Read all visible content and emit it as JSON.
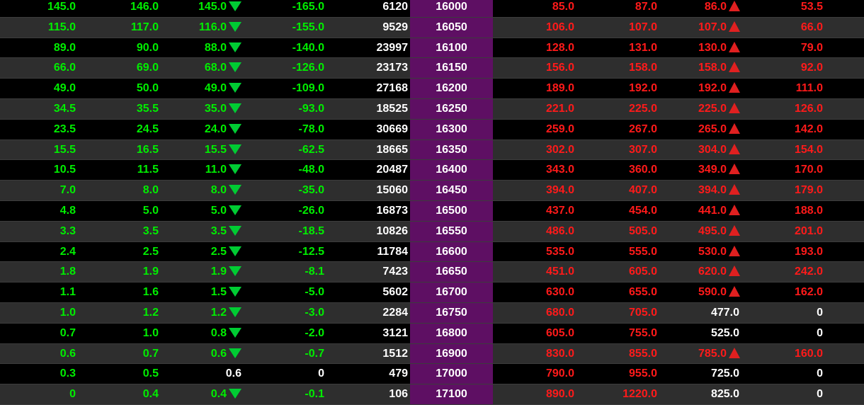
{
  "colors": {
    "up": "#00ee00",
    "down": "#ff1a1a",
    "neutral": "#ffffff",
    "strike_bg": "#5e0f63"
  },
  "rows": [
    {
      "c0": "145.0",
      "c1": "146.0",
      "c2": "145.0",
      "c2a": "down",
      "c2c": "green",
      "c3": "-165.0",
      "c3c": "green",
      "c4": "6120",
      "strike": "16000",
      "c5": "85.0",
      "c6": "87.0",
      "c7": "86.0",
      "c7a": "up",
      "c7c": "red",
      "c8": "53.5",
      "c8c": "red"
    },
    {
      "c0": "115.0",
      "c1": "117.0",
      "c2": "116.0",
      "c2a": "down",
      "c2c": "green",
      "c3": "-155.0",
      "c3c": "green",
      "c4": "9529",
      "strike": "16050",
      "c5": "106.0",
      "c6": "107.0",
      "c7": "107.0",
      "c7a": "up",
      "c7c": "red",
      "c8": "66.0",
      "c8c": "red"
    },
    {
      "c0": "89.0",
      "c1": "90.0",
      "c2": "88.0",
      "c2a": "down",
      "c2c": "green",
      "c3": "-140.0",
      "c3c": "green",
      "c4": "23997",
      "strike": "16100",
      "c5": "128.0",
      "c6": "131.0",
      "c7": "130.0",
      "c7a": "up",
      "c7c": "red",
      "c8": "79.0",
      "c8c": "red"
    },
    {
      "c0": "66.0",
      "c1": "69.0",
      "c2": "68.0",
      "c2a": "down",
      "c2c": "green",
      "c3": "-126.0",
      "c3c": "green",
      "c4": "23173",
      "strike": "16150",
      "c5": "156.0",
      "c6": "158.0",
      "c7": "158.0",
      "c7a": "up",
      "c7c": "red",
      "c8": "92.0",
      "c8c": "red"
    },
    {
      "c0": "49.0",
      "c1": "50.0",
      "c2": "49.0",
      "c2a": "down",
      "c2c": "green",
      "c3": "-109.0",
      "c3c": "green",
      "c4": "27168",
      "strike": "16200",
      "c5": "189.0",
      "c6": "192.0",
      "c7": "192.0",
      "c7a": "up",
      "c7c": "red",
      "c8": "111.0",
      "c8c": "red"
    },
    {
      "c0": "34.5",
      "c1": "35.5",
      "c2": "35.0",
      "c2a": "down",
      "c2c": "green",
      "c3": "-93.0",
      "c3c": "green",
      "c4": "18525",
      "strike": "16250",
      "c5": "221.0",
      "c6": "225.0",
      "c7": "225.0",
      "c7a": "up",
      "c7c": "red",
      "c8": "126.0",
      "c8c": "red"
    },
    {
      "c0": "23.5",
      "c1": "24.5",
      "c2": "24.0",
      "c2a": "down",
      "c2c": "green",
      "c3": "-78.0",
      "c3c": "green",
      "c4": "30669",
      "strike": "16300",
      "c5": "259.0",
      "c6": "267.0",
      "c7": "265.0",
      "c7a": "up",
      "c7c": "red",
      "c8": "142.0",
      "c8c": "red"
    },
    {
      "c0": "15.5",
      "c1": "16.5",
      "c2": "15.5",
      "c2a": "down",
      "c2c": "green",
      "c3": "-62.5",
      "c3c": "green",
      "c4": "18665",
      "strike": "16350",
      "c5": "302.0",
      "c6": "307.0",
      "c7": "304.0",
      "c7a": "up",
      "c7c": "red",
      "c8": "154.0",
      "c8c": "red"
    },
    {
      "c0": "10.5",
      "c1": "11.5",
      "c2": "11.0",
      "c2a": "down",
      "c2c": "green",
      "c3": "-48.0",
      "c3c": "green",
      "c4": "20487",
      "strike": "16400",
      "c5": "343.0",
      "c6": "360.0",
      "c7": "349.0",
      "c7a": "up",
      "c7c": "red",
      "c8": "170.0",
      "c8c": "red"
    },
    {
      "c0": "7.0",
      "c1": "8.0",
      "c2": "8.0",
      "c2a": "down",
      "c2c": "green",
      "c3": "-35.0",
      "c3c": "green",
      "c4": "15060",
      "strike": "16450",
      "c5": "394.0",
      "c6": "407.0",
      "c7": "394.0",
      "c7a": "up",
      "c7c": "red",
      "c8": "179.0",
      "c8c": "red"
    },
    {
      "c0": "4.8",
      "c1": "5.0",
      "c2": "5.0",
      "c2a": "down",
      "c2c": "green",
      "c3": "-26.0",
      "c3c": "green",
      "c4": "16873",
      "strike": "16500",
      "c5": "437.0",
      "c6": "454.0",
      "c7": "441.0",
      "c7a": "up",
      "c7c": "red",
      "c8": "188.0",
      "c8c": "red"
    },
    {
      "c0": "3.3",
      "c1": "3.5",
      "c2": "3.5",
      "c2a": "down",
      "c2c": "green",
      "c3": "-18.5",
      "c3c": "green",
      "c4": "10826",
      "strike": "16550",
      "c5": "486.0",
      "c6": "505.0",
      "c7": "495.0",
      "c7a": "up",
      "c7c": "red",
      "c8": "201.0",
      "c8c": "red"
    },
    {
      "c0": "2.4",
      "c1": "2.5",
      "c2": "2.5",
      "c2a": "down",
      "c2c": "green",
      "c3": "-12.5",
      "c3c": "green",
      "c4": "11784",
      "strike": "16600",
      "c5": "535.0",
      "c6": "555.0",
      "c7": "530.0",
      "c7a": "up",
      "c7c": "red",
      "c8": "193.0",
      "c8c": "red"
    },
    {
      "c0": "1.8",
      "c1": "1.9",
      "c2": "1.9",
      "c2a": "down",
      "c2c": "green",
      "c3": "-8.1",
      "c3c": "green",
      "c4": "7423",
      "strike": "16650",
      "c5": "451.0",
      "c6": "605.0",
      "c7": "620.0",
      "c7a": "up",
      "c7c": "red",
      "c8": "242.0",
      "c8c": "red"
    },
    {
      "c0": "1.1",
      "c1": "1.6",
      "c2": "1.5",
      "c2a": "down",
      "c2c": "green",
      "c3": "-5.0",
      "c3c": "green",
      "c4": "5602",
      "strike": "16700",
      "c5": "630.0",
      "c6": "655.0",
      "c7": "590.0",
      "c7a": "up",
      "c7c": "red",
      "c8": "162.0",
      "c8c": "red"
    },
    {
      "c0": "1.0",
      "c1": "1.2",
      "c2": "1.2",
      "c2a": "down",
      "c2c": "green",
      "c3": "-3.0",
      "c3c": "green",
      "c4": "2284",
      "strike": "16750",
      "c5": "680.0",
      "c6": "705.0",
      "c7": "477.0",
      "c7a": "none",
      "c7c": "white",
      "c8": "0",
      "c8c": "white"
    },
    {
      "c0": "0.7",
      "c1": "1.0",
      "c2": "0.8",
      "c2a": "down",
      "c2c": "green",
      "c3": "-2.0",
      "c3c": "green",
      "c4": "3121",
      "strike": "16800",
      "c5": "605.0",
      "c6": "755.0",
      "c7": "525.0",
      "c7a": "none",
      "c7c": "white",
      "c8": "0",
      "c8c": "white"
    },
    {
      "c0": "0.6",
      "c1": "0.7",
      "c2": "0.6",
      "c2a": "down",
      "c2c": "green",
      "c3": "-0.7",
      "c3c": "green",
      "c4": "1512",
      "strike": "16900",
      "c5": "830.0",
      "c6": "855.0",
      "c7": "785.0",
      "c7a": "up",
      "c7c": "red",
      "c8": "160.0",
      "c8c": "red"
    },
    {
      "c0": "0.3",
      "c1": "0.5",
      "c2": "0.6",
      "c2a": "none",
      "c2c": "white",
      "c3": "0",
      "c3c": "white",
      "c4": "479",
      "strike": "17000",
      "c5": "790.0",
      "c6": "955.0",
      "c7": "725.0",
      "c7a": "none",
      "c7c": "white",
      "c8": "0",
      "c8c": "white"
    },
    {
      "c0": "0",
      "c1": "0.4",
      "c2": "0.4",
      "c2a": "down",
      "c2c": "green",
      "c3": "-0.1",
      "c3c": "green",
      "c4": "106",
      "strike": "17100",
      "c5": "890.0",
      "c6": "1220.0",
      "c7": "825.0",
      "c7a": "none",
      "c7c": "white",
      "c8": "0",
      "c8c": "white"
    }
  ]
}
